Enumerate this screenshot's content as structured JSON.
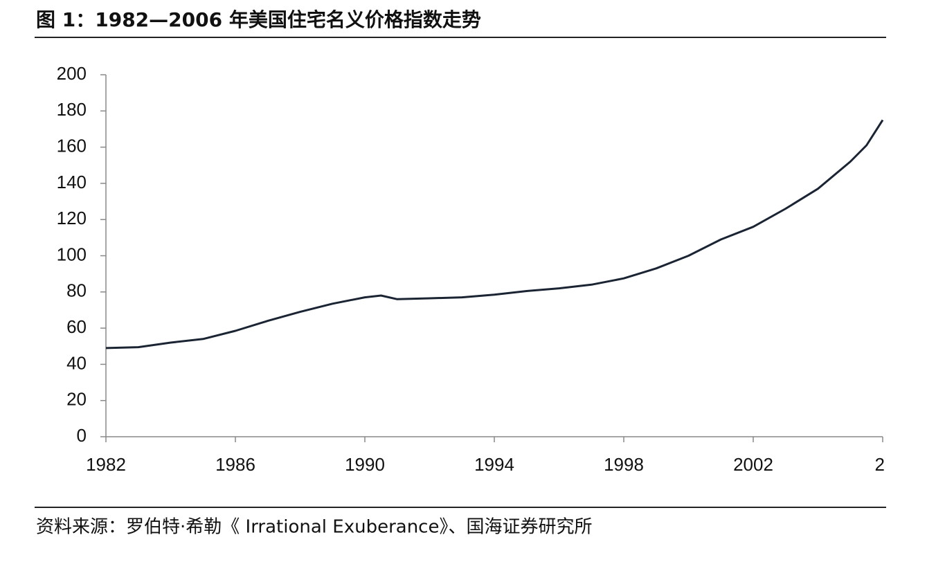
{
  "chart_data": {
    "type": "line",
    "title": "图 1：1982—2006 年美国住宅名义价格指数走势",
    "source": "资料来源：罗伯特·希勒《 Irrational Exuberance》、国海证券研究所",
    "x": [
      1982,
      1983,
      1984,
      1985,
      1986,
      1987,
      1988,
      1989,
      1990,
      1990.5,
      1991,
      1992,
      1993,
      1994,
      1995,
      1996,
      1997,
      1998,
      1999,
      2000,
      2001,
      2002,
      2003,
      2004,
      2005,
      2005.5,
      2006
    ],
    "values": [
      49,
      49.5,
      52,
      54,
      58.5,
      64,
      69,
      73.5,
      77,
      78,
      76,
      76.5,
      77,
      78.5,
      80.5,
      82,
      84,
      87.5,
      93,
      100,
      109,
      116,
      126,
      137,
      152,
      161,
      175
    ],
    "color": "#1a2433",
    "xlim": [
      1982,
      2006
    ],
    "xticks": [
      1982,
      1986,
      1990,
      1994,
      1998,
      2002,
      {
        "value": 2006,
        "label": "2"
      }
    ],
    "ylim": [
      0,
      200
    ],
    "yticks": [
      0,
      20,
      40,
      60,
      80,
      100,
      120,
      140,
      160,
      180,
      200
    ]
  }
}
